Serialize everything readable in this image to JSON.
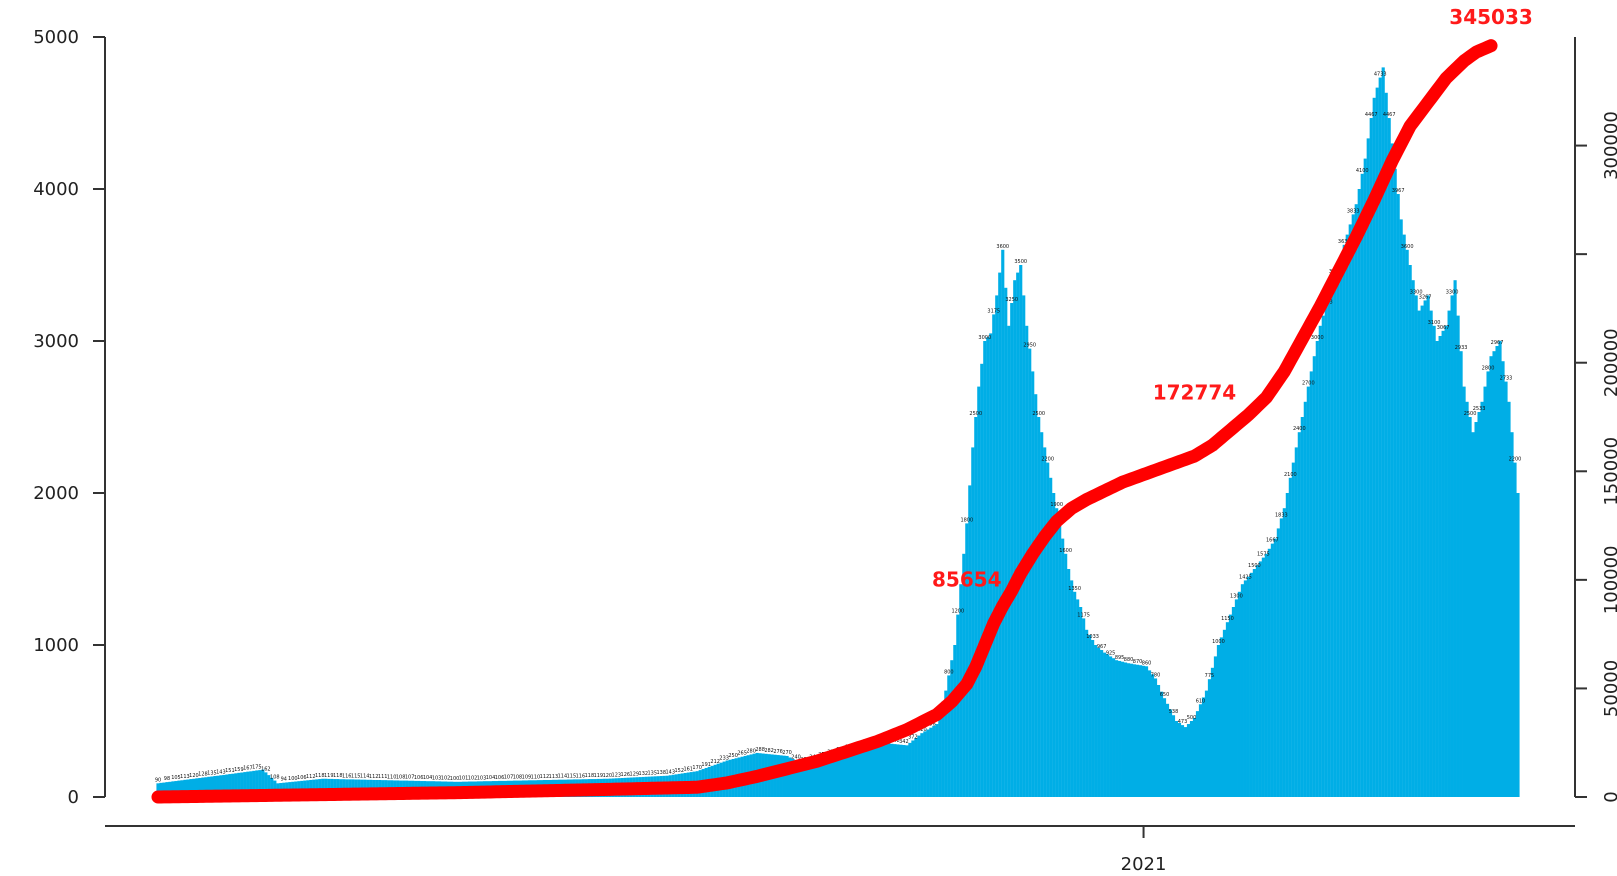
{
  "chart_data": {
    "type": "bar",
    "colors": {
      "bars": "#00aee6",
      "cumulative_line": "#ff0000"
    },
    "y_left": {
      "ylim": [
        0,
        5000
      ],
      "ticks": [
        0,
        1000,
        2000,
        3000,
        4000,
        5000
      ],
      "tick_labels": [
        "0",
        "1000",
        "2000",
        "3000",
        "4000",
        "5000"
      ]
    },
    "y_right": {
      "ylim": [
        0,
        350000
      ],
      "ticks": [
        0,
        50000,
        100000,
        150000,
        200000,
        250000,
        300000
      ],
      "tick_labels": [
        "0",
        "50000",
        "100000",
        "150000",
        "200000",
        "",
        "300000"
      ]
    },
    "x_axis": {
      "tick_labels": [
        "2021"
      ],
      "n_days": 455,
      "tick_day_index": 329
    },
    "daily_control_points": [
      [
        0,
        90
      ],
      [
        20,
        140
      ],
      [
        35,
        180
      ],
      [
        40,
        90
      ],
      [
        55,
        120
      ],
      [
        100,
        100
      ],
      [
        150,
        120
      ],
      [
        170,
        140
      ],
      [
        180,
        170
      ],
      [
        190,
        240
      ],
      [
        200,
        290
      ],
      [
        210,
        270
      ],
      [
        215,
        220
      ],
      [
        230,
        300
      ],
      [
        240,
        360
      ],
      [
        250,
        340
      ],
      [
        255,
        420
      ],
      [
        260,
        480
      ],
      [
        263,
        700
      ],
      [
        266,
        1000
      ],
      [
        268,
        1400
      ],
      [
        270,
        1800
      ],
      [
        272,
        2300
      ],
      [
        274,
        2700
      ],
      [
        276,
        3000
      ],
      [
        278,
        3050
      ],
      [
        280,
        3300
      ],
      [
        282,
        3600
      ],
      [
        284,
        3100
      ],
      [
        286,
        3400
      ],
      [
        288,
        3500
      ],
      [
        290,
        3100
      ],
      [
        292,
        2800
      ],
      [
        294,
        2500
      ],
      [
        296,
        2300
      ],
      [
        298,
        2100
      ],
      [
        300,
        1900
      ],
      [
        302,
        1700
      ],
      [
        304,
        1500
      ],
      [
        306,
        1350
      ],
      [
        308,
        1250
      ],
      [
        310,
        1100
      ],
      [
        313,
        1000
      ],
      [
        316,
        950
      ],
      [
        320,
        900
      ],
      [
        324,
        880
      ],
      [
        327,
        870
      ],
      [
        330,
        860
      ],
      [
        333,
        780
      ],
      [
        336,
        650
      ],
      [
        340,
        500
      ],
      [
        343,
        460
      ],
      [
        346,
        520
      ],
      [
        350,
        700
      ],
      [
        354,
        1000
      ],
      [
        358,
        1200
      ],
      [
        362,
        1400
      ],
      [
        366,
        1500
      ],
      [
        370,
        1600
      ],
      [
        373,
        1700
      ],
      [
        376,
        1900
      ],
      [
        379,
        2200
      ],
      [
        382,
        2500
      ],
      [
        385,
        2800
      ],
      [
        388,
        3100
      ],
      [
        391,
        3300
      ],
      [
        394,
        3500
      ],
      [
        397,
        3700
      ],
      [
        400,
        3900
      ],
      [
        403,
        4200
      ],
      [
        406,
        4600
      ],
      [
        409,
        4800
      ],
      [
        412,
        4300
      ],
      [
        415,
        3800
      ],
      [
        418,
        3500
      ],
      [
        421,
        3200
      ],
      [
        424,
        3300
      ],
      [
        427,
        3000
      ],
      [
        430,
        3100
      ],
      [
        433,
        3400
      ],
      [
        436,
        2700
      ],
      [
        439,
        2400
      ],
      [
        442,
        2600
      ],
      [
        445,
        2900
      ],
      [
        448,
        3000
      ],
      [
        451,
        2600
      ],
      [
        454,
        2000
      ]
    ],
    "cumulative_control_points": [
      [
        0,
        0
      ],
      [
        100,
        2000
      ],
      [
        150,
        3500
      ],
      [
        180,
        4500
      ],
      [
        190,
        6500
      ],
      [
        200,
        9500
      ],
      [
        210,
        13000
      ],
      [
        220,
        16500
      ],
      [
        230,
        21000
      ],
      [
        240,
        25500
      ],
      [
        250,
        31000
      ],
      [
        260,
        38000
      ],
      [
        265,
        44000
      ],
      [
        270,
        52000
      ],
      [
        273,
        60000
      ],
      [
        276,
        70000
      ],
      [
        279,
        80000
      ],
      [
        282,
        88000
      ],
      [
        285,
        95000
      ],
      [
        288,
        103000
      ],
      [
        292,
        112000
      ],
      [
        296,
        120000
      ],
      [
        300,
        127000
      ],
      [
        305,
        133000
      ],
      [
        310,
        137000
      ],
      [
        316,
        141000
      ],
      [
        322,
        145000
      ],
      [
        328,
        148000
      ],
      [
        334,
        151000
      ],
      [
        340,
        154000
      ],
      [
        346,
        157000
      ],
      [
        352,
        162000
      ],
      [
        358,
        169000
      ],
      [
        364,
        176000
      ],
      [
        370,
        184000
      ],
      [
        376,
        196000
      ],
      [
        382,
        211000
      ],
      [
        388,
        226000
      ],
      [
        394,
        242000
      ],
      [
        400,
        258000
      ],
      [
        406,
        275000
      ],
      [
        412,
        293000
      ],
      [
        418,
        309000
      ],
      [
        424,
        320000
      ],
      [
        430,
        331000
      ],
      [
        436,
        339000
      ],
      [
        440,
        343000
      ],
      [
        445,
        346000
      ]
    ],
    "cumulative_annotations": [
      {
        "text": "85654",
        "day": 270,
        "cum": 97000
      },
      {
        "text": "172774",
        "day": 346,
        "cum": 183000
      },
      {
        "text": "345033",
        "day": 445,
        "cum": 356000
      }
    ]
  }
}
